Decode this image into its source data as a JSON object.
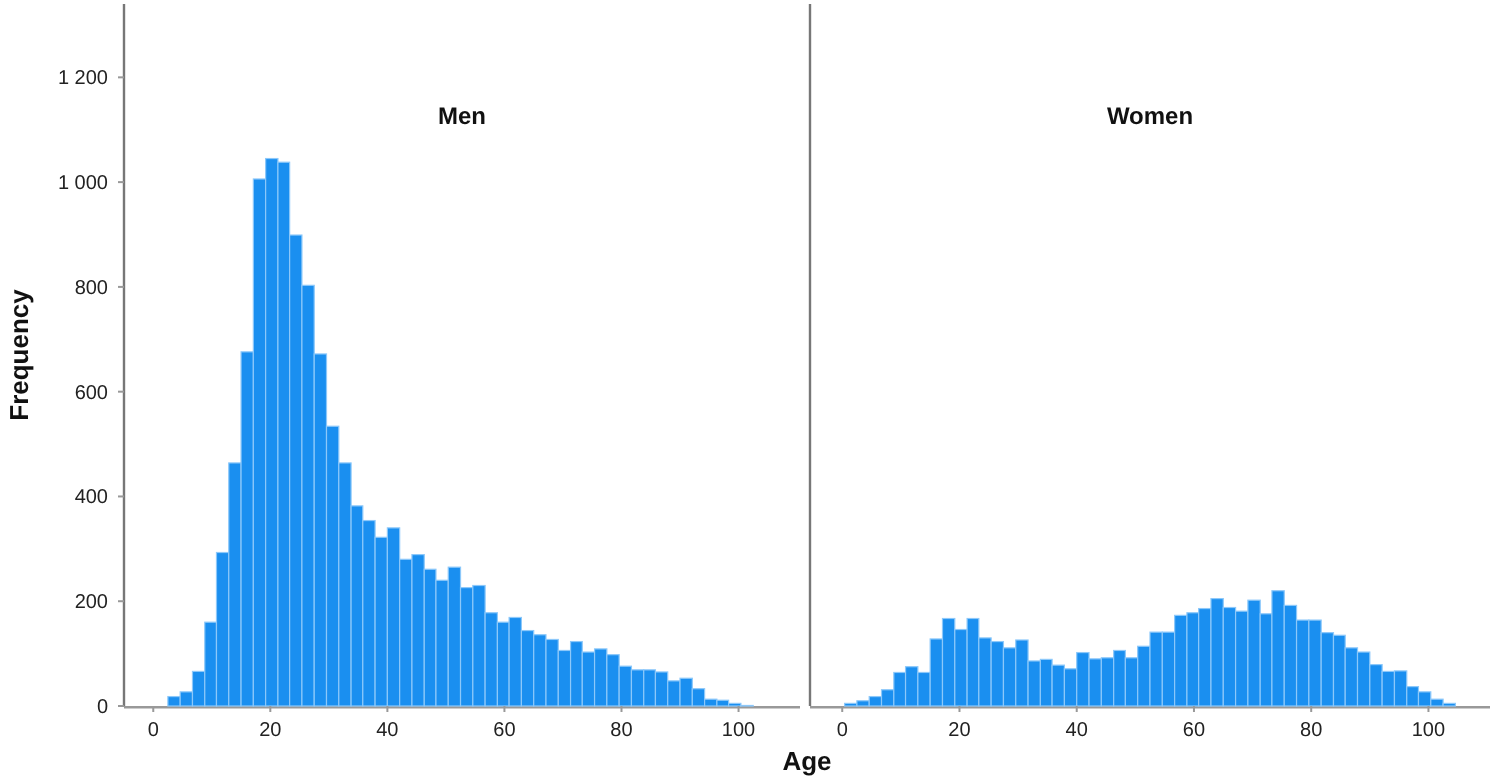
{
  "chart_data": [
    {
      "type": "histogram",
      "title": "Men",
      "xlabel": "Age",
      "ylabel": "Frequency",
      "color": "#1a8ff0",
      "bins": [
        2.5,
        4.6,
        6.7,
        8.8,
        10.8,
        12.9,
        15,
        17.1,
        19.2,
        21.3,
        23.3,
        25.4,
        27.5,
        29.6,
        31.7,
        33.8,
        35.8,
        37.9,
        40,
        42.1,
        44.2,
        46.3,
        48.3,
        50.4,
        52.5,
        54.6,
        56.7,
        58.8,
        60.8,
        62.9,
        65,
        67.1,
        69.2,
        71.3,
        73.3,
        75.4,
        77.5,
        79.6,
        81.7,
        83.8,
        85.8,
        87.9,
        90,
        92.1,
        94.2,
        96.3,
        98.3,
        100.4,
        102.5
      ],
      "values": [
        18,
        27,
        66,
        160,
        293,
        464,
        676,
        1006,
        1045,
        1038,
        899,
        803,
        672,
        534,
        464,
        382,
        354,
        322,
        340,
        280,
        289,
        261,
        240,
        265,
        226,
        230,
        178,
        160,
        169,
        144,
        136,
        127,
        106,
        123,
        103,
        109,
        98,
        76,
        69,
        69,
        65,
        48,
        53,
        33,
        13,
        11,
        5,
        1
      ],
      "xlim": [
        -5,
        110.5
      ],
      "xticks": [
        0,
        20,
        40,
        60,
        80,
        100
      ],
      "ylim": [
        0,
        1340
      ],
      "yticks": [
        0,
        200,
        400,
        600,
        800,
        {
          "value": 1000,
          "label": "1 000"
        },
        {
          "value": 1200,
          "label": "1 200"
        }
      ],
      "grid": false
    },
    {
      "type": "histogram",
      "title": "Women",
      "color": "#1a8ff0",
      "bins": [
        0.4,
        2.5,
        4.6,
        6.7,
        8.8,
        10.8,
        12.9,
        15,
        17.1,
        19.2,
        21.3,
        23.3,
        25.4,
        27.5,
        29.6,
        31.7,
        33.8,
        35.8,
        37.9,
        40,
        42.1,
        44.2,
        46.3,
        48.3,
        50.4,
        52.5,
        54.6,
        56.7,
        58.8,
        60.8,
        62.9,
        65,
        67.1,
        69.2,
        71.3,
        73.3,
        75.4,
        77.5,
        79.6,
        81.7,
        83.8,
        85.8,
        87.9,
        90,
        92.1,
        94.2,
        96.3,
        98.3,
        100.4,
        102.5,
        104.6
      ],
      "values": [
        5,
        10,
        18,
        31,
        64,
        75,
        64,
        128,
        167,
        146,
        167,
        130,
        123,
        111,
        126,
        86,
        89,
        78,
        71,
        102,
        90,
        92,
        106,
        92,
        114,
        141,
        141,
        173,
        178,
        186,
        205,
        188,
        181,
        202,
        176,
        220,
        192,
        164,
        164,
        140,
        135,
        111,
        103,
        79,
        66,
        67,
        37,
        27,
        13,
        5
      ],
      "xlim": [
        -5.5,
        110.5
      ],
      "xticks": [
        0,
        20,
        40,
        60,
        80,
        100
      ],
      "ylim": [
        0,
        1340
      ],
      "tick_labels": "x",
      "grid": false
    }
  ]
}
